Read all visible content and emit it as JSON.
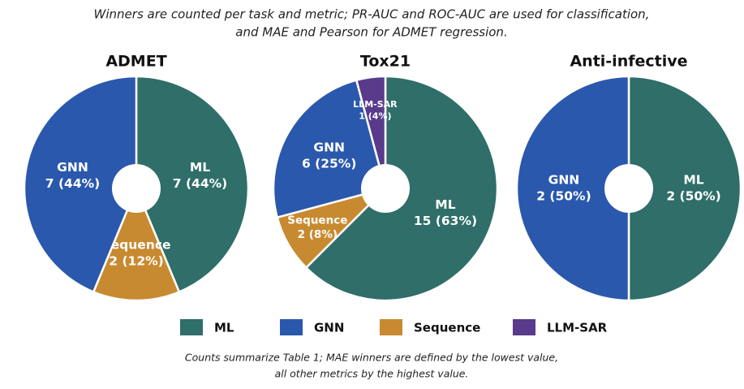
{
  "caption": [
    "Winners are counted per task and metric; PR-AUC and ROC-AUC are used for classification,",
    "and MAE and Pearson for ADMET regression."
  ],
  "chart_data": [
    {
      "type": "pie",
      "title": "ADMET",
      "categories": [
        "ML",
        "Sequence",
        "GNN"
      ],
      "values": [
        7,
        2,
        7
      ],
      "value_labels": [
        "7 (44%)",
        "2 (12%)",
        "7 (44%)"
      ]
    },
    {
      "type": "pie",
      "title": "Tox21",
      "categories": [
        "ML",
        "Sequence",
        "GNN",
        "LLM-SAR"
      ],
      "values": [
        15,
        2,
        6,
        1
      ],
      "value_labels": [
        "15 (63%)",
        "2 (8%)",
        "6 (25%)",
        "1 (4%)"
      ]
    },
    {
      "type": "pie",
      "title": "Anti-infective",
      "categories": [
        "ML",
        "GNN"
      ],
      "values": [
        2,
        2
      ],
      "value_labels": [
        "2 (50%)",
        "2 (50%)"
      ]
    }
  ],
  "legend": [
    {
      "name": "ML",
      "color": "#2f6e69"
    },
    {
      "name": "GNN",
      "color": "#2a58ad"
    },
    {
      "name": "Sequence",
      "color": "#c88a30"
    },
    {
      "name": "LLM-SAR",
      "color": "#5a3a8b"
    }
  ],
  "footnote": [
    "Counts summarize Table 1; MAE winners are defined by the lowest value,",
    "all other metrics by the highest value."
  ]
}
